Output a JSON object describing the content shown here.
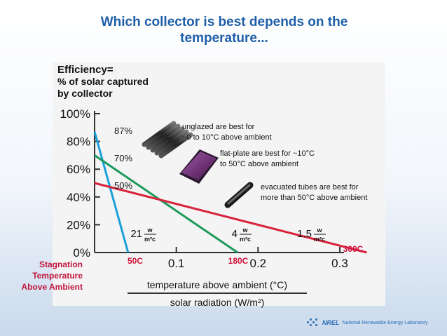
{
  "slide": {
    "title_line1": "Which collector is best depends on the",
    "title_line2": "temperature..."
  },
  "chart_data": {
    "type": "line",
    "ylabel_lines": [
      "Efficiency=",
      "% of solar captured",
      "by collector"
    ],
    "xlabel_numerator": "temperature above ambient (°C)",
    "xlabel_denominator": "solar radiation (W/m²)",
    "xlim": [
      0,
      0.3
    ],
    "ylim": [
      0,
      100
    ],
    "x_ticks": [
      "0.1",
      "0.2",
      "0.3"
    ],
    "y_ticks": [
      "0%",
      "20%",
      "40%",
      "60%",
      "80%",
      "100%"
    ],
    "y_tick_values": [
      0,
      20,
      40,
      60,
      80,
      100
    ],
    "x_tick_values": [
      0.1,
      0.2,
      0.3
    ],
    "series": [
      {
        "key": "unglazed",
        "color": "#1aa0d8",
        "values": [
          [
            0,
            87
          ],
          [
            0.041,
            0
          ]
        ]
      },
      {
        "key": "flat-plate",
        "color": "#1c9a5c",
        "values": [
          [
            0,
            70
          ],
          [
            0.175,
            0
          ]
        ]
      },
      {
        "key": "evacuated",
        "color": "#d8233c",
        "values": [
          [
            0,
            50
          ],
          [
            0.333,
            0
          ]
        ]
      }
    ],
    "annotations": {
      "intercepts": [
        "87%",
        "70%",
        "50%"
      ],
      "slopes": [
        {
          "num": "21",
          "unit_top": "w",
          "unit_bottom": "m²c"
        },
        {
          "num": "4",
          "unit_top": "w",
          "unit_bottom": "m²c"
        },
        {
          "num": "1.5",
          "unit_top": "w",
          "unit_bottom": "m²c"
        }
      ],
      "stagnation_temps": [
        "50C",
        "180C",
        "300C"
      ],
      "stagnation_label": [
        "Stagnation",
        "Temperature",
        "Above Ambient"
      ],
      "notes": [
        [
          "unglazed are best for",
          "~0 to 10°C above ambient"
        ],
        [
          "flat-plate are best for ~10°C",
          "to 50°C above ambient"
        ],
        [
          "evacuated tubes are best for",
          "more than 50°C above ambient"
        ]
      ]
    }
  },
  "footer": {
    "brand": "NREL",
    "lab": "National Renewable Energy Laboratory",
    "logo_icon": "nrel-logo-icon"
  }
}
